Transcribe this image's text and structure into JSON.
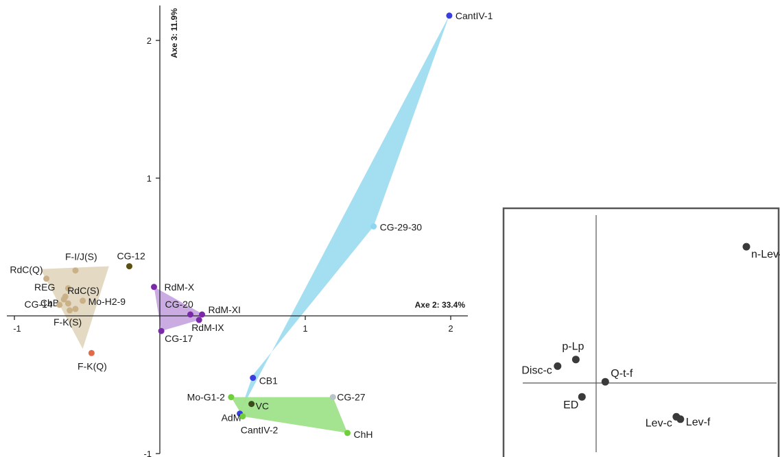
{
  "chart_data": [
    {
      "type": "scatter",
      "title": "",
      "xlabel": "Axe 2: 33.4%",
      "ylabel": "Axe 3: 11.9%",
      "xlim": [
        -1,
        2.1
      ],
      "ylim": [
        -1,
        2.2
      ],
      "x_ticks": [
        {
          "value": -1,
          "label": "-1"
        },
        {
          "value": 1,
          "label": "1"
        },
        {
          "value": 2,
          "label": "2"
        }
      ],
      "y_ticks": [
        {
          "value": 2,
          "label": "2"
        },
        {
          "value": 1,
          "label": "1"
        },
        {
          "value": -1,
          "label": "-1"
        }
      ],
      "grid": false,
      "groups": [
        {
          "color": "#e3d7bf",
          "hull": [
            [
              -0.82,
              0.34
            ],
            [
              -0.35,
              0.36
            ],
            [
              -0.53,
              -0.24
            ]
          ]
        },
        {
          "color": "#c7a8e1",
          "hull": [
            [
              -0.04,
              0.21
            ],
            [
              0.3,
              0.01
            ],
            [
              0.27,
              -0.03
            ],
            [
              0.01,
              -0.11
            ]
          ]
        },
        {
          "color": "#9fdcf0",
          "hull": [
            [
              1.99,
              2.18
            ],
            [
              1.47,
              0.65
            ],
            [
              0.64,
              -0.43
            ],
            [
              0.55,
              -0.7
            ]
          ]
        },
        {
          "color": "#9fe18a",
          "hull": [
            [
              0.49,
              -0.59
            ],
            [
              1.19,
              -0.59
            ],
            [
              1.29,
              -0.85
            ],
            [
              0.57,
              -0.73
            ]
          ]
        }
      ],
      "points": [
        {
          "name": "RdC(Q)",
          "x": -0.78,
          "y": 0.27,
          "color": "#cbb188"
        },
        {
          "name": "F-I/J(S)",
          "x": -0.58,
          "y": 0.33,
          "color": "#cbb188"
        },
        {
          "name": "REG",
          "x": -0.63,
          "y": 0.2,
          "color": "#cbb188"
        },
        {
          "name": "RdC(S)",
          "x": -0.65,
          "y": 0.14,
          "color": "#cbb188"
        },
        {
          "name": "ChB",
          "x": -0.66,
          "y": 0.12,
          "color": "#cbb188"
        },
        {
          "name": "Mo-H2-9",
          "x": -0.53,
          "y": 0.11,
          "color": "#cbb188"
        },
        {
          "name": "CG-14",
          "x": -0.69,
          "y": 0.08,
          "color": "#cbb188"
        },
        {
          "name": "",
          "x": -0.63,
          "y": 0.09,
          "color": "#cbb188"
        },
        {
          "name": "",
          "x": -0.58,
          "y": 0.05,
          "color": "#cbb188"
        },
        {
          "name": "F-K(S)",
          "x": -0.62,
          "y": 0.04,
          "color": "#cbb188"
        },
        {
          "name": "CG-12",
          "x": -0.21,
          "y": 0.36,
          "color": "#5a5010"
        },
        {
          "name": "F-K(Q)",
          "x": -0.47,
          "y": -0.27,
          "color": "#e06a4a"
        },
        {
          "name": "RdM-X",
          "x": -0.04,
          "y": 0.21,
          "color": "#7a2aa8"
        },
        {
          "name": "CG-20",
          "x": 0.21,
          "y": 0.01,
          "color": "#7a2aa8"
        },
        {
          "name": "RdM-XI",
          "x": 0.29,
          "y": 0.01,
          "color": "#7a2aa8"
        },
        {
          "name": "RdM-IX",
          "x": 0.27,
          "y": -0.03,
          "color": "#7a2aa8"
        },
        {
          "name": "CG-17",
          "x": 0.01,
          "y": -0.11,
          "color": "#7a2aa8"
        },
        {
          "name": "CantIV-1",
          "x": 1.99,
          "y": 2.18,
          "color": "#3a3de0"
        },
        {
          "name": "CG-29-30",
          "x": 1.47,
          "y": 0.65,
          "color": "#8fd6f3"
        },
        {
          "name": "CB1",
          "x": 0.64,
          "y": -0.45,
          "color": "#3a3de0"
        },
        {
          "name": "AdM",
          "x": 0.55,
          "y": -0.71,
          "color": "#3a3de0"
        },
        {
          "name": "Mo-G1-2",
          "x": 0.49,
          "y": -0.59,
          "color": "#6fcf3a"
        },
        {
          "name": "VC",
          "x": 0.63,
          "y": -0.64,
          "color": "#3a4a1a"
        },
        {
          "name": "CG-27",
          "x": 1.19,
          "y": -0.59,
          "color": "#b8c4c8"
        },
        {
          "name": "CantIV-2",
          "x": 0.57,
          "y": -0.73,
          "color": "#6fcf3a"
        },
        {
          "name": "ChH",
          "x": 1.29,
          "y": -0.85,
          "color": "#6fcf3a"
        }
      ]
    },
    {
      "type": "scatter",
      "title": "",
      "xlabel": "",
      "ylabel": "",
      "xlim": [
        -1,
        2
      ],
      "ylim": [
        -1.2,
        2.8
      ],
      "legend": "none",
      "grid": false,
      "points": [
        {
          "name": "n-Lev-lam",
          "x": 1.48,
          "y": 2.26,
          "color": "#3a3a3a"
        },
        {
          "name": "p-Lp",
          "x": -0.2,
          "y": 0.39,
          "color": "#3a3a3a"
        },
        {
          "name": "Disc-c",
          "x": -0.38,
          "y": 0.28,
          "color": "#3a3a3a"
        },
        {
          "name": "Q-t-f",
          "x": 0.09,
          "y": 0.02,
          "color": "#3a3a3a"
        },
        {
          "name": "ED",
          "x": -0.14,
          "y": -0.23,
          "color": "#3a3a3a"
        },
        {
          "name": "Lev-c",
          "x": 0.79,
          "y": -0.56,
          "color": "#3a3a3a"
        },
        {
          "name": "Lev-f",
          "x": 0.83,
          "y": -0.6,
          "color": "#3a3a3a"
        }
      ]
    }
  ]
}
